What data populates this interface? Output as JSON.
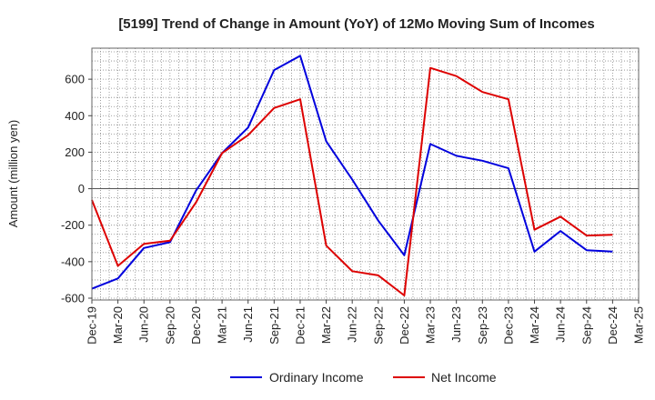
{
  "chart_data": {
    "type": "line",
    "title": "[5199]  Trend of Change in Amount (YoY) of 12Mo Moving Sum of Incomes",
    "xlabel": "",
    "ylabel": "Amount (million yen)",
    "ylim": [
      -610,
      770
    ],
    "yticks": [
      -600,
      -400,
      -200,
      0,
      200,
      400,
      600
    ],
    "ytick_labels": [
      "-600",
      "-400",
      "-200",
      "0",
      "200",
      "400",
      "600"
    ],
    "grid": true,
    "legend_position": "bottom-center",
    "categories": [
      "Dec-19",
      "Mar-20",
      "Jun-20",
      "Sep-20",
      "Dec-20",
      "Mar-21",
      "Jun-21",
      "Sep-21",
      "Dec-21",
      "Mar-22",
      "Jun-22",
      "Sep-22",
      "Dec-22",
      "Mar-23",
      "Jun-23",
      "Sep-23",
      "Dec-23",
      "Mar-24",
      "Jun-24",
      "Sep-24",
      "Dec-24",
      "Mar-25"
    ],
    "series": [
      {
        "name": "Ordinary Income",
        "color": "#0000dd",
        "values": [
          -548,
          -492,
          -325,
          -293,
          -10,
          195,
          335,
          650,
          728,
          260,
          50,
          -175,
          -365,
          245,
          180,
          153,
          112,
          -345,
          -232,
          -337,
          -345,
          null
        ]
      },
      {
        "name": "Net Income",
        "color": "#dd0000",
        "values": [
          -62,
          -423,
          -302,
          -285,
          -75,
          195,
          293,
          442,
          490,
          -312,
          -452,
          -475,
          -585,
          662,
          617,
          530,
          490,
          -225,
          -153,
          -257,
          -253,
          null
        ]
      }
    ]
  }
}
